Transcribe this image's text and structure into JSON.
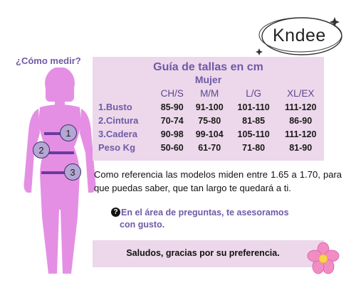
{
  "brand": {
    "logo_text": "Kndee"
  },
  "measure": {
    "title": "¿Cómo medir?",
    "badges": [
      "1",
      "2",
      "3"
    ]
  },
  "guide": {
    "title": "Guía de tallas en cm",
    "subtitle": "Mujer",
    "columns": [
      "CH/S",
      "M/M",
      "L/G",
      "XL/EX"
    ],
    "rows": [
      {
        "label": "1.Busto",
        "values": [
          "85-90",
          "91-100",
          "101-110",
          "111-120"
        ]
      },
      {
        "label": "2.Cintura",
        "values": [
          "70-74",
          "75-80",
          "81-85",
          "86-90"
        ]
      },
      {
        "label": "3.Cadera",
        "values": [
          "90-98",
          "99-104",
          "105-110",
          "111-120"
        ]
      },
      {
        "label": "Peso Kg",
        "values": [
          "50-60",
          "61-70",
          "71-80",
          "81-90"
        ]
      }
    ]
  },
  "note": {
    "description": "Como referencia las modelos miden entre 1.65 a 1.70, para que puedas saber, que tan largo te quedará a ti.",
    "question_icon": "?",
    "ask_line1": "En el área de preguntas, te asesoramos",
    "ask_line2": "con gusto."
  },
  "footer": {
    "greeting": "Saludos, gracias por su preferencia."
  },
  "icons": {
    "logo": "circle-logo-icon",
    "figure": "woman-silhouette-icon",
    "question": "question-icon",
    "flower": "pink-flower-icon"
  },
  "colors": {
    "accent": "#6f5aa6",
    "panel": "#ecd8ea",
    "figure": "#e48fe4",
    "badge": "#b5a7d4"
  }
}
